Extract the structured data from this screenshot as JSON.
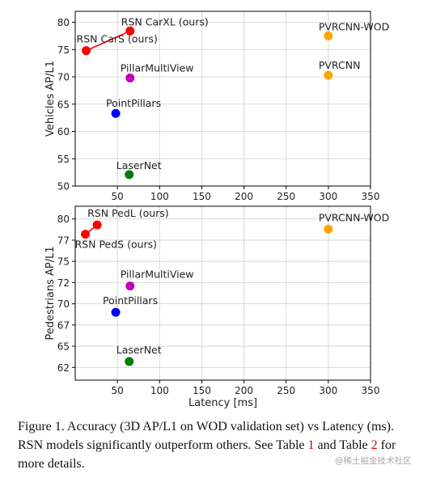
{
  "chart_data": [
    {
      "type": "scatter",
      "title": "",
      "xlabel": "",
      "ylabel": "Vehicles AP/L1",
      "xlim": [
        0,
        350
      ],
      "ylim": [
        50,
        82
      ],
      "xticks": [
        50,
        100,
        150,
        200,
        250,
        300,
        350
      ],
      "yticks": [
        50,
        55,
        60,
        65,
        70,
        75,
        80
      ],
      "grid": true,
      "points": [
        {
          "label": "RSN CarS (ours)",
          "x": 13,
          "y": 74.8,
          "color": "#ff0000"
        },
        {
          "label": "RSN CarXL (ours)",
          "x": 65,
          "y": 78.4,
          "color": "#ff0000"
        },
        {
          "label": "PillarMultiView",
          "x": 65,
          "y": 69.8,
          "color": "#bf00bf"
        },
        {
          "label": "PointPillars",
          "x": 48,
          "y": 63.3,
          "color": "#0000ff"
        },
        {
          "label": "LaserNet",
          "x": 64,
          "y": 52.1,
          "color": "#008000"
        },
        {
          "label": "PVRCNN-WOD",
          "x": 300,
          "y": 77.5,
          "color": "#ffa500"
        },
        {
          "label": "PVRCNN",
          "x": 300,
          "y": 70.3,
          "color": "#ffa500"
        }
      ],
      "connections": [
        {
          "from": "RSN CarS (ours)",
          "to": "RSN CarXL (ours)",
          "color": "#ff0000"
        }
      ]
    },
    {
      "type": "scatter",
      "title": "",
      "xlabel": "Latency [ms]",
      "ylabel": "Pedestrians AP/L1",
      "xlim": [
        0,
        350
      ],
      "ylim": [
        61,
        81.5
      ],
      "xticks": [
        50,
        100,
        150,
        200,
        250,
        300,
        350
      ],
      "yticks": [
        62,
        65,
        67,
        70,
        72,
        75,
        77,
        80
      ],
      "ytick_values": [
        62.5,
        65,
        67.5,
        70,
        72.5,
        75,
        77.5,
        80
      ],
      "grid": true,
      "points": [
        {
          "label": "RSN PedS (ours)",
          "x": 12,
          "y": 78.2,
          "color": "#ff0000"
        },
        {
          "label": "RSN PedL (ours)",
          "x": 26,
          "y": 79.3,
          "color": "#ff0000"
        },
        {
          "label": "PillarMultiView",
          "x": 65,
          "y": 72.1,
          "color": "#bf00bf"
        },
        {
          "label": "PointPillars",
          "x": 48,
          "y": 69.0,
          "color": "#0000ff"
        },
        {
          "label": "LaserNet",
          "x": 64,
          "y": 63.2,
          "color": "#008000"
        },
        {
          "label": "PVRCNN-WOD",
          "x": 300,
          "y": 78.8,
          "color": "#ffa500"
        }
      ],
      "connections": [
        {
          "from": "RSN PedS (ours)",
          "to": "RSN PedL (ours)",
          "color": "#ff0000"
        }
      ]
    }
  ],
  "caption": {
    "text1": "Figure 1. Accuracy (3D AP/L1 on WOD validation set) vs Latency (ms). RSN models significantly outperform others. See Table ",
    "ref1": "1",
    "text2": " and Table ",
    "ref2": "2",
    "text3": " for more details."
  },
  "watermark": "@稀土掘金技术社区"
}
